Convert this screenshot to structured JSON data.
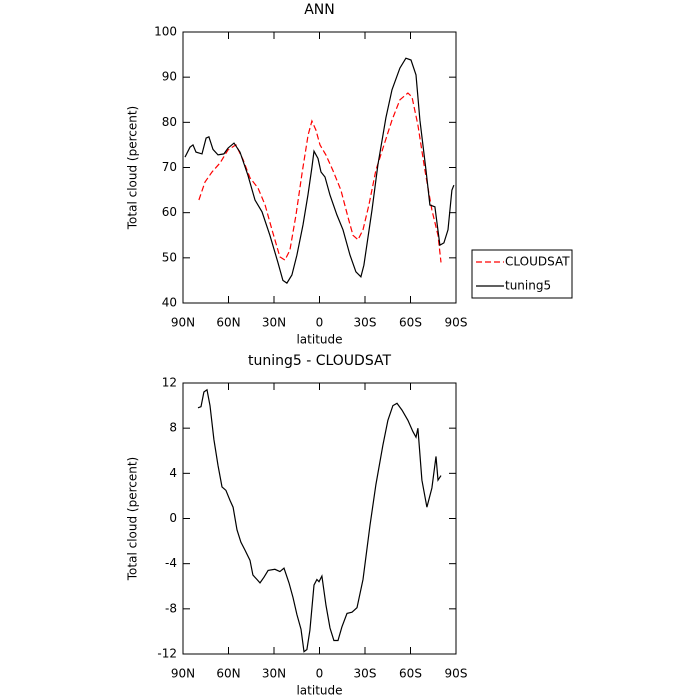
{
  "chart_data": [
    {
      "type": "line",
      "title": "ANN",
      "xlabel": "latitude",
      "ylabel": "Total cloud (percent)",
      "xlim": [
        90,
        -90
      ],
      "ylim": [
        40,
        100
      ],
      "xticks": [
        {
          "value": 90,
          "label": "90N"
        },
        {
          "value": 60,
          "label": "60N"
        },
        {
          "value": 30,
          "label": "30N"
        },
        0,
        {
          "value": -30,
          "label": "30S"
        },
        {
          "value": -60,
          "label": "60S"
        },
        {
          "value": -90,
          "label": "90S"
        }
      ],
      "yticks": [
        40,
        50,
        60,
        70,
        80,
        90,
        100
      ],
      "legend": "right",
      "series": [
        {
          "name": "CLOUDSAT",
          "color": "#ff0000",
          "dashed": true,
          "x": [
            79.5,
            75.5,
            70.9,
            65.6,
            60.3,
            55.1,
            50.4,
            45.8,
            40.6,
            35.9,
            31.3,
            26.1,
            22.8,
            19.5,
            15.5,
            11.5,
            7.5,
            5,
            2.4,
            -0.3,
            -4.2,
            -8.8,
            -14.1,
            -18.8,
            -22.1,
            -25.4,
            -28.7,
            -32.6,
            -37.2,
            -42.5,
            -47.8,
            -53,
            -58.3,
            -61,
            -64.9,
            -69.5,
            -74.1,
            -78.1,
            -80.1
          ],
          "values": [
            62.8,
            66.8,
            69,
            71,
            73.9,
            75,
            71.7,
            67.7,
            65.5,
            61.7,
            56.2,
            50.2,
            49.5,
            51.7,
            59.5,
            68.8,
            77.2,
            80.3,
            78.3,
            75,
            72.8,
            69.4,
            65,
            59,
            55,
            54,
            56.2,
            61.7,
            69.4,
            75,
            80.5,
            85,
            86.5,
            85.6,
            79.4,
            69.4,
            60.6,
            55,
            49
          ]
        },
        {
          "name": "tuning5",
          "color": "#000000",
          "dashed": false,
          "x": [
            88.7,
            85.4,
            83.4,
            81.4,
            77.5,
            74.8,
            72.9,
            70.2,
            66.9,
            63,
            60.3,
            56.4,
            52.4,
            47.2,
            42.5,
            37.9,
            32.7,
            27.4,
            24.1,
            21.5,
            18.2,
            14.9,
            10.9,
            7.6,
            5,
            3.6,
            1,
            -1,
            -3.6,
            -6.9,
            -11.5,
            -15.5,
            -20.1,
            -24,
            -27.3,
            -29.3,
            -34.6,
            -38.5,
            -43.8,
            -47.8,
            -53,
            -57,
            -60.3,
            -63.6,
            -66.2,
            -70.2,
            -72.8,
            -76.1,
            -79.4,
            -82,
            -84.7,
            -87.3,
            -88.6
          ],
          "values": [
            72.3,
            74.5,
            75,
            73.4,
            73,
            76.5,
            76.8,
            74,
            72.8,
            73,
            74.3,
            75.4,
            73.4,
            68.3,
            62.8,
            60.2,
            55,
            49,
            45,
            44.4,
            46.2,
            50.6,
            57.3,
            64,
            70,
            73.6,
            72,
            69,
            67.9,
            63.9,
            59.5,
            56.2,
            50.6,
            46.9,
            45.8,
            48.4,
            60.6,
            70.6,
            81,
            87.2,
            92,
            94.2,
            93.8,
            90.5,
            80.5,
            69.4,
            61.7,
            61.3,
            52.8,
            53.3,
            56.2,
            65,
            66.1
          ]
        }
      ]
    },
    {
      "type": "line",
      "title": "tuning5 - CLOUDSAT",
      "xlabel": "latitude",
      "ylabel": "Total cloud (percent)",
      "xlim": [
        90,
        -90
      ],
      "ylim": [
        -12,
        12
      ],
      "xticks": [
        {
          "value": 90,
          "label": "90N"
        },
        {
          "value": 60,
          "label": "60N"
        },
        {
          "value": 30,
          "label": "30N"
        },
        0,
        {
          "value": -30,
          "label": "30S"
        },
        {
          "value": -60,
          "label": "60S"
        },
        {
          "value": -90,
          "label": "90S"
        }
      ],
      "yticks": [
        -12,
        -8,
        -4,
        0,
        4,
        8,
        12
      ],
      "series": [
        {
          "color": "#000000",
          "dashed": false,
          "x": [
            80.1,
            78.1,
            76.2,
            74.2,
            72.2,
            69.6,
            66.9,
            64.3,
            61.7,
            59,
            57,
            54.4,
            51.8,
            49.1,
            45.8,
            43.9,
            41.2,
            39.2,
            36.6,
            33.9,
            29.4,
            26.1,
            23.4,
            20.1,
            17.5,
            14.9,
            12.2,
            10.2,
            8.3,
            6.3,
            3.6,
            1.7,
            0.3,
            -1.6,
            -4.3,
            -6.9,
            -9.5,
            -12.2,
            -14.8,
            -18.1,
            -21.4,
            -24.7,
            -28.7,
            -33.3,
            -37.2,
            -41.8,
            -45.1,
            -48.4,
            -51.1,
            -54.4,
            -58.3,
            -61.6,
            -63.6,
            -64.9,
            -67.5,
            -70.8,
            -74.1,
            -76.8,
            -78.1,
            -80.1
          ],
          "values": [
            9.8,
            9.9,
            11.2,
            11.4,
            10,
            7,
            4.7,
            2.8,
            2.5,
            1.6,
            1,
            -1,
            -2.1,
            -2.8,
            -3.7,
            -5,
            -5.4,
            -5.7,
            -5.2,
            -4.6,
            -4.5,
            -4.7,
            -4.4,
            -5.7,
            -7,
            -8.5,
            -9.8,
            -11.8,
            -11.6,
            -9.9,
            -5.9,
            -5.4,
            -5.6,
            -5.1,
            -7.7,
            -9.7,
            -10.8,
            -10.8,
            -9.6,
            -8.4,
            -8.3,
            -7.9,
            -5.4,
            -0.6,
            3,
            6.5,
            8.7,
            10,
            10.2,
            9.6,
            8.7,
            7.7,
            7.2,
            8,
            3.4,
            1,
            2.7,
            5.5,
            3.4,
            3.8
          ]
        }
      ]
    }
  ]
}
